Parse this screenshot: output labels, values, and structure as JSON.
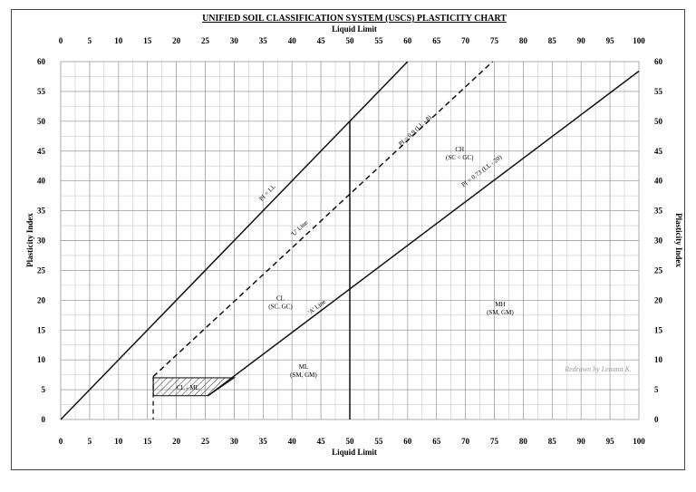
{
  "chart_data": {
    "type": "line",
    "title": "UNIFIED SOIL CLASSIFICATION SYSTEM (USCS) PLASTICITY CHART",
    "xlabel": "Liquid Limit",
    "ylabel": "Plasticity Index",
    "xlim": [
      0,
      100
    ],
    "ylim": [
      0,
      60
    ],
    "x_ticks": [
      0,
      5,
      10,
      15,
      20,
      25,
      30,
      35,
      40,
      45,
      50,
      55,
      60,
      65,
      70,
      75,
      80,
      85,
      90,
      95,
      100
    ],
    "y_ticks": [
      0,
      5,
      10,
      15,
      20,
      25,
      30,
      35,
      40,
      45,
      50,
      55,
      60
    ],
    "grid": true,
    "series": [
      {
        "name": "PI = LL",
        "style": "solid",
        "x": [
          0,
          60
        ],
        "y": [
          0,
          60
        ]
      },
      {
        "name": "PI = 0.9 (LL - 8)",
        "style": "dashed",
        "x": [
          16,
          74.7
        ],
        "y": [
          7.2,
          60
        ]
      },
      {
        "name": "PI = 0.73 (LL - 20)",
        "style": "solid",
        "x": [
          25.5,
          100
        ],
        "y": [
          4,
          58.4
        ]
      },
      {
        "name": "LL = 50",
        "style": "solid",
        "x": [
          50,
          50
        ],
        "y": [
          0,
          50
        ]
      }
    ],
    "annotations": {
      "u_line": "'U' Line",
      "a_line": "'A' Line",
      "pi_ll": "PI = LL",
      "pi_u": "PI = 0.9 (LL - 8)",
      "pi_a": "PI = 0.73 (LL - 20)"
    },
    "regions": [
      {
        "label": "CH",
        "sub": "(SC < GC)",
        "x": 69,
        "y": 45
      },
      {
        "label": "CL",
        "sub": "(SC, GC)",
        "x": 38,
        "y": 20
      },
      {
        "label": "MH",
        "sub": "(SM, GM)",
        "x": 76,
        "y": 19
      },
      {
        "label": "ML",
        "sub": "(SM, GM)",
        "x": 42,
        "y": 8.5
      },
      {
        "label": "CL - ML",
        "sub": "",
        "x": 22,
        "y": 5
      }
    ],
    "hatched_zone": {
      "x": [
        16,
        30,
        25.5,
        16
      ],
      "y": [
        7,
        7,
        4,
        4
      ]
    },
    "credit": "Redrawn by Lenana K."
  }
}
